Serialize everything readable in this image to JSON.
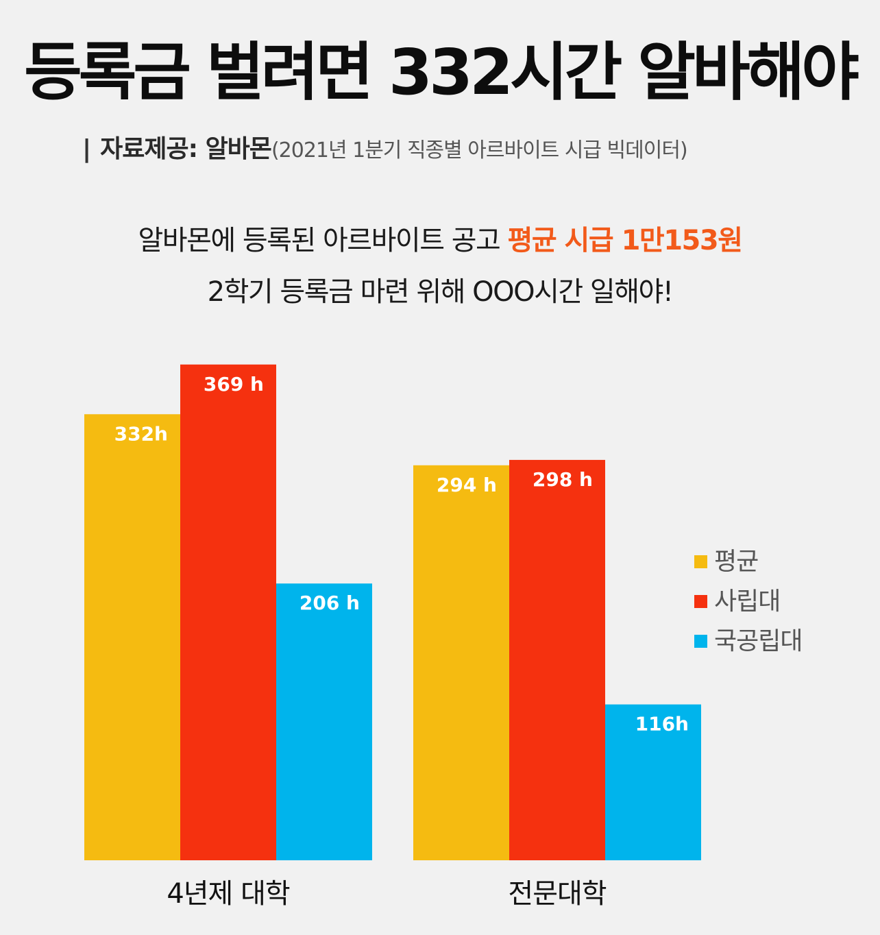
{
  "header": {
    "title": "등록금 벌려면 332시간 알바해야",
    "source_separator": "|",
    "source_label": "자료제공: 알바몬",
    "source_detail": "(2021년 1분기 직종별 아르바이트 시급 빅데이터)"
  },
  "intro": {
    "line1_prefix": "알바몬에 등록된 아르바이트 공고 ",
    "line1_highlight": "평균 시급 1만153원",
    "line2": "2학기 등록금 마련 위해 OOO시간 일해야!"
  },
  "colors": {
    "average": "#f5bb11",
    "private": "#f5310f",
    "public": "#00b4ec",
    "highlight": "#f25a1a"
  },
  "chart_data": {
    "type": "bar",
    "title": "등록금 벌려면 332시간 알바해야",
    "categories": [
      "4년제 대학",
      "전문대학"
    ],
    "series": [
      {
        "name": "평균",
        "values": [
          332,
          294
        ],
        "labels": [
          "332h",
          "294 h"
        ]
      },
      {
        "name": "사립대",
        "values": [
          369,
          298
        ],
        "labels": [
          "369 h",
          "298 h"
        ]
      },
      {
        "name": "국공립대",
        "values": [
          206,
          116
        ],
        "labels": [
          "206 h",
          "116h"
        ]
      }
    ],
    "xlabel": "",
    "ylabel": "",
    "ylim": [
      0,
      400
    ],
    "grid": false,
    "legend_position": "right"
  }
}
